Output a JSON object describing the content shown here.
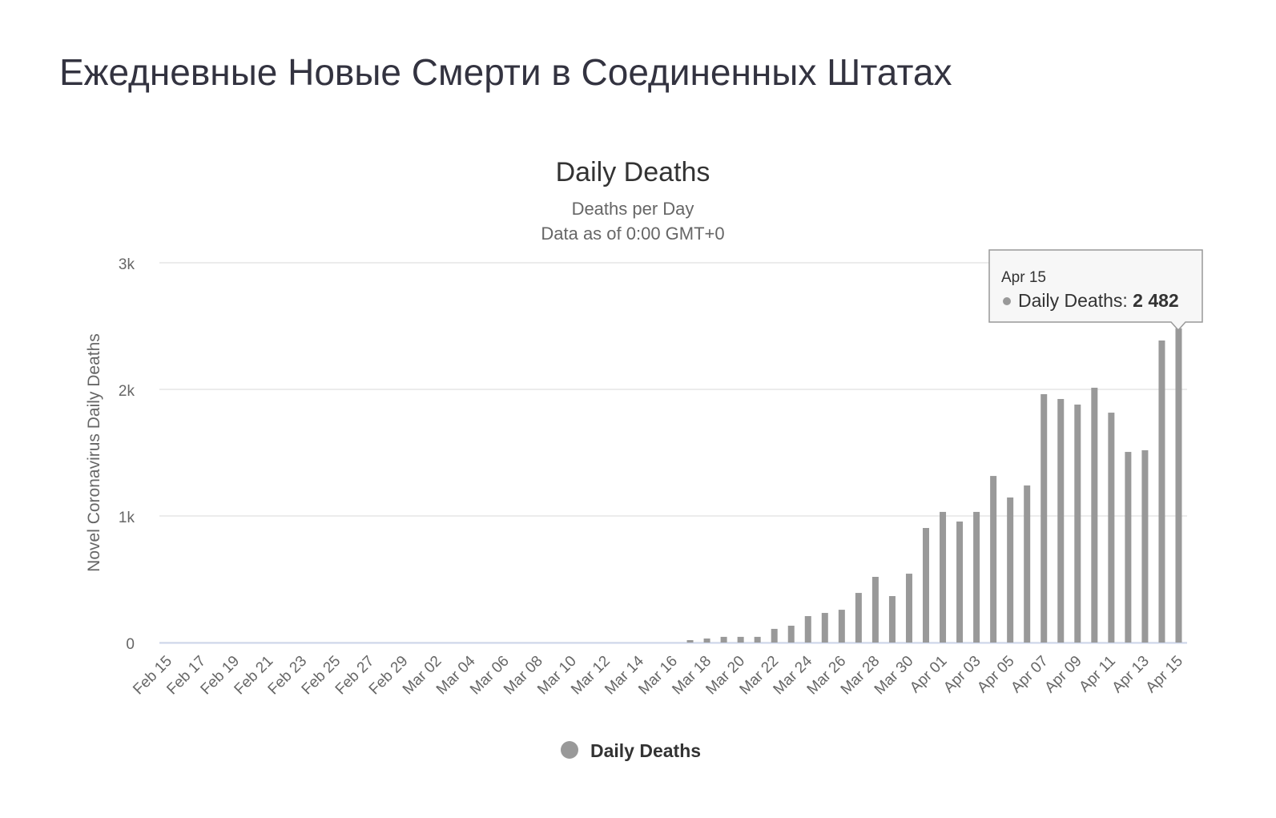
{
  "page_title": "Ежедневные Новые Смерти в Соединенных Штатах",
  "chart_data": {
    "type": "bar",
    "title": "Daily Deaths",
    "subtitle": [
      "Deaths per Day",
      "Data as of 0:00 GMT+0"
    ],
    "y_label": "Novel Coronavirus Daily Deaths",
    "categories": [
      "Feb 15",
      null,
      "Feb 17",
      null,
      "Feb 19",
      null,
      "Feb 21",
      null,
      "Feb 23",
      null,
      "Feb 25",
      null,
      "Feb 27",
      null,
      "Feb 29",
      null,
      "Mar 02",
      null,
      "Mar 04",
      null,
      "Mar 06",
      null,
      "Mar 08",
      null,
      "Mar 10",
      null,
      "Mar 12",
      null,
      "Mar 14",
      null,
      "Mar 16",
      null,
      "Mar 18",
      null,
      "Mar 20",
      null,
      "Mar 22",
      null,
      "Mar 24",
      null,
      "Mar 26",
      null,
      "Mar 28",
      null,
      "Mar 30",
      null,
      "Apr 01",
      null,
      "Apr 03",
      null,
      "Apr 05",
      null,
      "Apr 07",
      null,
      "Apr 09",
      null,
      "Apr 11",
      null,
      "Apr 13",
      null,
      "Apr 15"
    ],
    "series": [
      {
        "name": "Daily Deaths",
        "color": "#999999",
        "values": [
          0,
          0,
          0,
          0,
          0,
          0,
          0,
          0,
          0,
          0,
          0,
          0,
          0,
          0,
          0,
          0,
          0,
          0,
          0,
          0,
          0,
          0,
          0,
          0,
          0,
          0,
          0,
          0,
          0,
          0,
          0,
          19,
          32,
          45,
          45,
          45,
          108,
          133,
          209,
          234,
          259,
          392,
          519,
          367,
          544,
          905,
          1032,
          956,
          1032,
          1316,
          1146,
          1241,
          1962,
          1924,
          1880,
          2013,
          1816,
          1506,
          1519,
          2386,
          2482
        ],
        "value_labels": [
          null,
          null,
          null,
          null,
          null,
          null,
          null,
          null,
          null,
          null,
          null,
          null,
          null,
          null,
          null,
          null,
          null,
          null,
          null,
          null,
          null,
          null,
          null,
          null,
          null,
          null,
          null,
          null,
          null,
          null,
          null,
          null,
          null,
          null,
          null,
          null,
          null,
          null,
          null,
          null,
          null,
          null,
          null,
          null,
          null,
          null,
          null,
          null,
          null,
          null,
          null,
          null,
          null,
          null,
          null,
          null,
          null,
          null,
          null,
          null,
          "2 482"
        ]
      }
    ],
    "tooltip_date": "Apr 15",
    "ylim": [
      0,
      3000
    ],
    "yticks": [
      0,
      {
        "value": 1000,
        "label": "1k"
      },
      {
        "value": 2000,
        "label": "2k"
      },
      {
        "value": 3000,
        "label": "3k"
      }
    ],
    "grid": true,
    "legend": "bottom"
  }
}
